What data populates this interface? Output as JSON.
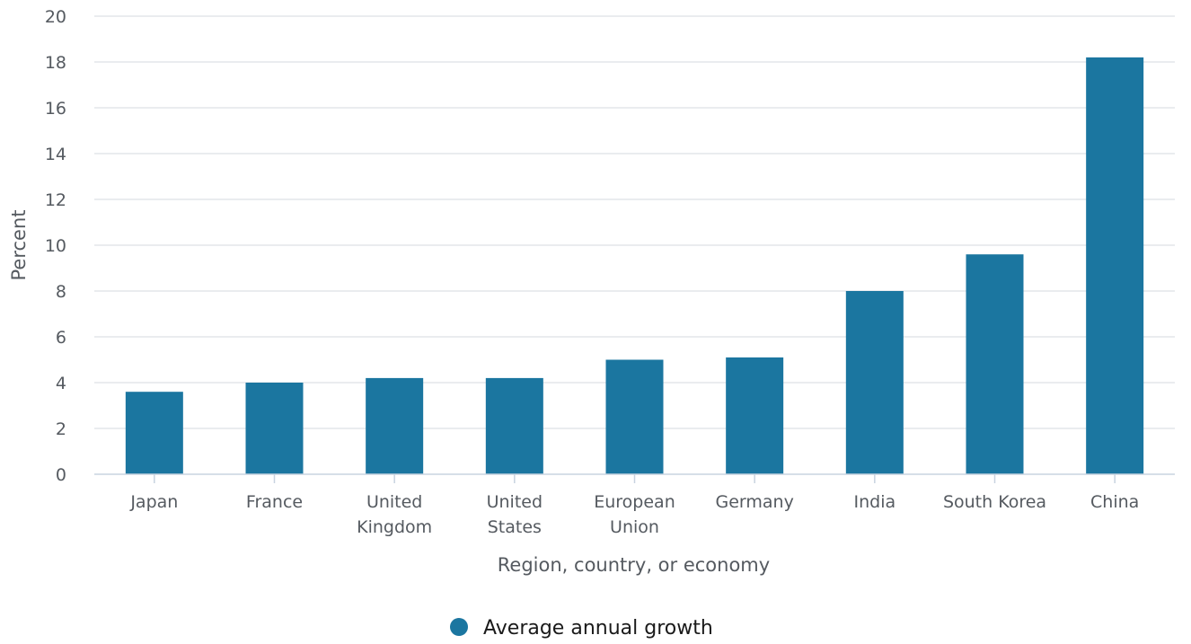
{
  "chart_data": {
    "type": "bar",
    "categories": [
      "Japan",
      "France",
      "United Kingdom",
      "United States",
      "European Union",
      "Germany",
      "India",
      "South Korea",
      "China"
    ],
    "category_label_lines": [
      [
        "Japan"
      ],
      [
        "France"
      ],
      [
        "United",
        "Kingdom"
      ],
      [
        "United",
        "States"
      ],
      [
        "European",
        "Union"
      ],
      [
        "Germany"
      ],
      [
        "India"
      ],
      [
        "South Korea"
      ],
      [
        "China"
      ]
    ],
    "series": [
      {
        "name": "Average annual growth",
        "color": "#1b76a0",
        "values": [
          3.6,
          4.0,
          4.2,
          4.2,
          5.0,
          5.1,
          8.0,
          9.6,
          18.2
        ]
      }
    ],
    "xlabel": "Region, country, or economy",
    "ylabel": "Percent",
    "ylim": [
      0,
      20
    ],
    "yticks": [
      0,
      2,
      4,
      6,
      8,
      10,
      12,
      14,
      16,
      18,
      20
    ],
    "grid": true,
    "legend_position": "bottom-center"
  },
  "colors": {
    "bar": "#1b76a0",
    "gridline": "#e3e6ea",
    "axis": "#c8d3e0",
    "text": "#555a60"
  }
}
